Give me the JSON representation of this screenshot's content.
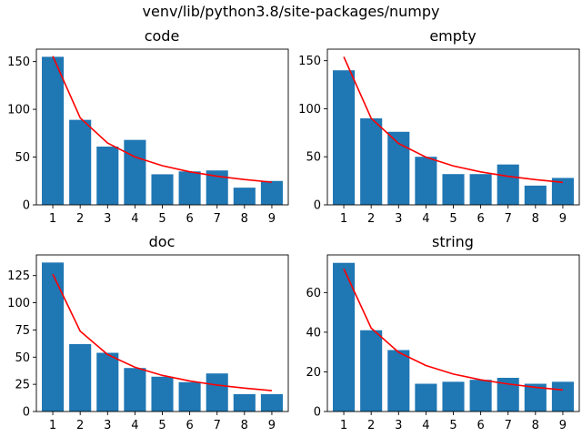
{
  "figure_title": "venv/lib/python3.8/site-packages/numpy",
  "chart_data": [
    {
      "type": "bar",
      "title": "code",
      "categories": [
        "1",
        "2",
        "3",
        "4",
        "5",
        "6",
        "7",
        "8",
        "9"
      ],
      "values": [
        155,
        89,
        61,
        68,
        32,
        35,
        36,
        18,
        25
      ],
      "line_values": [
        155.7,
        91.1,
        64.7,
        50.2,
        41.0,
        34.6,
        30.0,
        26.5,
        23.7
      ],
      "ylim": [
        0,
        163
      ],
      "yticks": [
        0,
        50,
        100,
        150
      ],
      "bar_color": "#1f77b4",
      "line_color": "#ff0000"
    },
    {
      "type": "bar",
      "title": "empty",
      "categories": [
        "1",
        "2",
        "3",
        "4",
        "5",
        "6",
        "7",
        "8",
        "9"
      ],
      "values": [
        140,
        90,
        76,
        50,
        32,
        32,
        42,
        20,
        28
      ],
      "line_values": [
        154.0,
        90.1,
        63.9,
        49.6,
        40.5,
        34.3,
        29.7,
        26.2,
        23.4
      ],
      "ylim": [
        0,
        162
      ],
      "yticks": [
        0,
        50,
        100,
        150
      ],
      "bar_color": "#1f77b4",
      "line_color": "#ff0000"
    },
    {
      "type": "bar",
      "title": "doc",
      "categories": [
        "1",
        "2",
        "3",
        "4",
        "5",
        "6",
        "7",
        "8",
        "9"
      ],
      "values": [
        137,
        62,
        54,
        40,
        32,
        27,
        35,
        16,
        16
      ],
      "line_values": [
        126.3,
        73.9,
        52.4,
        40.7,
        33.2,
        28.1,
        24.3,
        21.5,
        19.2
      ],
      "ylim": [
        0,
        144
      ],
      "yticks": [
        0,
        25,
        50,
        75,
        100,
        125
      ],
      "bar_color": "#1f77b4",
      "line_color": "#ff0000"
    },
    {
      "type": "bar",
      "title": "string",
      "categories": [
        "1",
        "2",
        "3",
        "4",
        "5",
        "6",
        "7",
        "8",
        "9"
      ],
      "values": [
        75,
        41,
        31,
        14,
        15,
        16,
        17,
        14,
        15
      ],
      "line_values": [
        72.0,
        42.1,
        29.9,
        23.2,
        18.9,
        16.0,
        13.9,
        12.2,
        10.9
      ],
      "ylim": [
        0,
        79
      ],
      "yticks": [
        0,
        20,
        40,
        60
      ],
      "bar_color": "#1f77b4",
      "line_color": "#ff0000"
    }
  ]
}
